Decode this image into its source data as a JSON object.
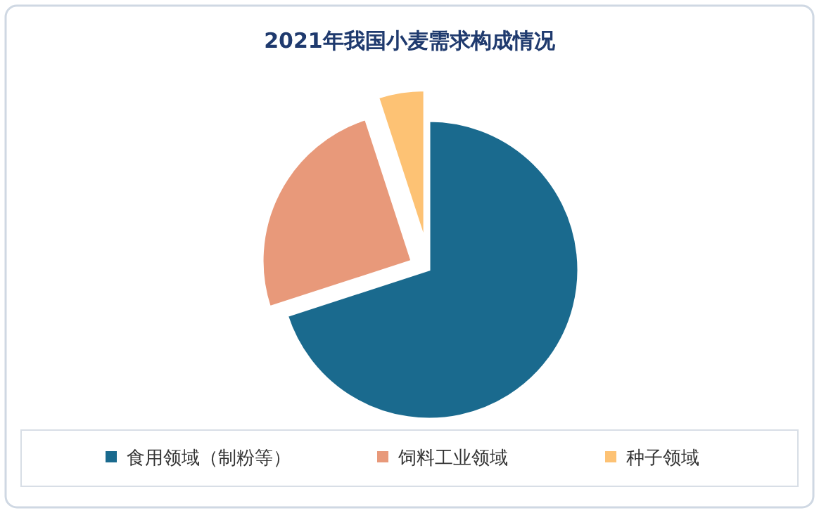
{
  "chart_data": {
    "type": "pie",
    "title": "2021年我国小麦需求构成情况",
    "categories": [
      "食用领域（制粉等）",
      "饲料工业领域",
      "种子领域"
    ],
    "values": [
      70,
      25,
      5
    ],
    "colors": [
      "#1a6a8e",
      "#e8997a",
      "#fdc274"
    ],
    "legend": "bottom"
  }
}
